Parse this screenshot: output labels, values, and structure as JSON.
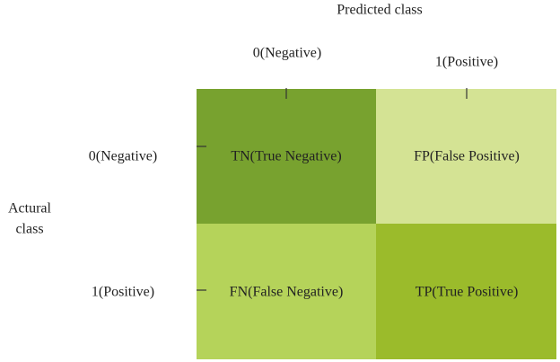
{
  "header": {
    "title": "Predicted class",
    "columns": [
      "0(Negative)",
      "1(Positive)"
    ]
  },
  "rows": {
    "title": [
      "Actural",
      "class"
    ],
    "labels": [
      "0(Negative)",
      "1(Positive)"
    ]
  },
  "cells": [
    [
      "TN(True Negative)",
      "FP(False Positive)"
    ],
    [
      "FN(False Negative)",
      "TP(True Positive)"
    ]
  ]
}
